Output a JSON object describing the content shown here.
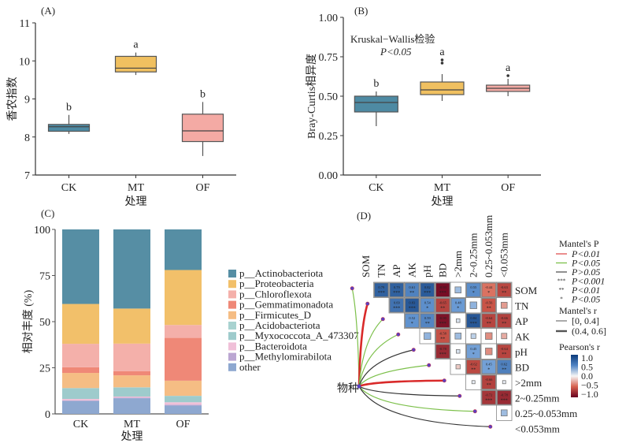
{
  "chart_data": [
    {
      "panel": "(A)",
      "type": "box",
      "title": "",
      "xlabel": "处理",
      "ylabel": "香农指数",
      "ylim": [
        7,
        11
      ],
      "yticks": [
        7,
        8,
        9,
        10,
        11
      ],
      "categories": [
        "CK",
        "MT",
        "OF"
      ],
      "colors": [
        "#4e8aa3",
        "#f0c060",
        "#f4aaa4"
      ],
      "boxes": [
        {
          "name": "CK",
          "whisker_low": 8.08,
          "q1": 8.15,
          "median": 8.27,
          "q3": 8.33,
          "whisker_high": 8.58,
          "outliers": [],
          "letter": "b"
        },
        {
          "name": "MT",
          "whisker_low": 9.63,
          "q1": 9.71,
          "median": 9.81,
          "q3": 10.12,
          "whisker_high": 10.22,
          "outliers": [],
          "letter": "a"
        },
        {
          "name": "OF",
          "whisker_low": 7.5,
          "q1": 7.88,
          "median": 8.16,
          "q3": 8.6,
          "whisker_high": 8.92,
          "outliers": [],
          "letter": "b"
        }
      ]
    },
    {
      "panel": "(B)",
      "type": "box",
      "xlabel": "处理",
      "ylabel": "Bray-Curtis相异度",
      "ylim": [
        0,
        1
      ],
      "yticks": [
        "0.00",
        "0.25",
        "0.50",
        "0.75",
        "1.00"
      ],
      "annotation": [
        "Kruskal−Wallis检验",
        "P<0.05"
      ],
      "categories": [
        "CK",
        "MT",
        "OF"
      ],
      "colors": [
        "#4e8aa3",
        "#f0c060",
        "#f4aaa4"
      ],
      "boxes": [
        {
          "name": "CK",
          "whisker_low": 0.31,
          "q1": 0.4,
          "median": 0.46,
          "q3": 0.5,
          "whisker_high": 0.53,
          "outliers": [],
          "letter": "b"
        },
        {
          "name": "MT",
          "whisker_low": 0.47,
          "q1": 0.51,
          "median": 0.54,
          "q3": 0.59,
          "whisker_high": 0.64,
          "outliers": [
            0.71,
            0.73
          ],
          "letter": "a"
        },
        {
          "name": "OF",
          "whisker_low": 0.5,
          "q1": 0.53,
          "median": 0.55,
          "q3": 0.57,
          "whisker_high": 0.61,
          "outliers": [
            0.63
          ],
          "letter": "a"
        }
      ]
    },
    {
      "panel": "(C)",
      "type": "stacked-bar",
      "xlabel": "处理",
      "ylabel": "相对丰度 (%)",
      "ylim": [
        0,
        100
      ],
      "yticks": [
        0,
        25,
        50,
        75,
        100
      ],
      "categories": [
        "CK",
        "MT",
        "OF"
      ],
      "series": [
        {
          "name": "other",
          "color": "#8ea8d0",
          "values": [
            7,
            8.5,
            4.5
          ]
        },
        {
          "name": "p__Methylomirabilota",
          "color": "#bba6d2",
          "values": [
            0.3,
            0.3,
            0.5
          ]
        },
        {
          "name": "p__Bacteroidota",
          "color": "#f0c0d8",
          "values": [
            0.8,
            0.6,
            1.3
          ]
        },
        {
          "name": "p__Myxococcota_A_473307",
          "color": "#9ecbcc",
          "values": [
            5.8,
            4.9,
            3.4
          ]
        },
        {
          "name": "p__Acidobacteriota",
          "color": "#a8d2d0",
          "values": [
            0.1,
            0.1,
            0.1
          ]
        },
        {
          "name": "p__Firmicutes_D",
          "color": "#f5bd84",
          "values": [
            8.2,
            6.5,
            8.2
          ]
        },
        {
          "name": "p__Gemmatimonadota",
          "color": "#ef8877",
          "values": [
            3.1,
            2.3,
            23.2
          ]
        },
        {
          "name": "p__Chloroflexota",
          "color": "#f4b0aa",
          "values": [
            12.7,
            14.9,
            7.0
          ]
        },
        {
          "name": "p__Proteobacteria",
          "color": "#f2c06a",
          "values": [
            21.6,
            19.0,
            29.8
          ]
        },
        {
          "name": "p__Actinobacteriota",
          "color": "#568ea4",
          "values": [
            40.4,
            42.9,
            22.0
          ]
        }
      ],
      "legend": [
        "p__Actinobacteriota",
        "p__Proteobacteria",
        "p__Chloroflexota",
        "p__Gemmatimonadota",
        "p__Firmicutes_D",
        "p__Acidobacteriota",
        "p__Myxococcota_A_473307",
        "p__Bacteroidota",
        "p__Methylomirabilota",
        "other"
      ],
      "legend_colors": [
        "#568ea4",
        "#f2c06a",
        "#f4b0aa",
        "#ef8877",
        "#f5bd84",
        "#a8d2d0",
        "#9ecbcc",
        "#f0c0d8",
        "#bba6d2",
        "#8ea8d0"
      ]
    },
    {
      "panel": "(D)",
      "type": "heatmap",
      "variables": [
        "SOM",
        "TN",
        "AP",
        "AK",
        "pH",
        "BD",
        ">2mm",
        "2~0.25mm",
        "0.25~0.053mm",
        "<0.053mm"
      ],
      "matrix_upper": [
        [
          "SOM",
          "TN",
          0.79,
          "***"
        ],
        [
          "SOM",
          "AP",
          0.79,
          "***"
        ],
        [
          "SOM",
          "AK",
          0.61,
          "**"
        ],
        [
          "SOM",
          "pH",
          0.82,
          "***"
        ],
        [
          "SOM",
          "BD",
          -0.93,
          "***"
        ],
        [
          "SOM",
          ">2mm",
          0.3,
          ""
        ],
        [
          "SOM",
          "2~0.25mm",
          0.55,
          "*"
        ],
        [
          "SOM",
          "0.25~0.053mm",
          -0.44,
          "*"
        ],
        [
          "SOM",
          "<0.053mm",
          -0.63,
          "**"
        ],
        [
          "TN",
          "AP",
          0.69,
          "***"
        ],
        [
          "TN",
          "AK",
          0.83,
          "***"
        ],
        [
          "TN",
          "pH",
          0.54,
          "*"
        ],
        [
          "TN",
          "BD",
          -0.65,
          "**"
        ],
        [
          "TN",
          ">2mm",
          0.48,
          "*"
        ],
        [
          "TN",
          "2~0.25mm",
          0.35,
          ""
        ],
        [
          "TN",
          "0.25~0.053mm",
          -0.56,
          "**"
        ],
        [
          "TN",
          "<0.053mm",
          -0.3,
          ""
        ],
        [
          "AP",
          "AK",
          0.52,
          "*"
        ],
        [
          "AP",
          "pH",
          0.59,
          "**"
        ],
        [
          "AP",
          "BD",
          -0.9,
          "***"
        ],
        [
          "AP",
          ">2mm",
          0.1,
          ""
        ],
        [
          "AP",
          "2~0.25mm",
          0.84,
          "***"
        ],
        [
          "AP",
          "0.25~0.053mm",
          -0.64,
          "**"
        ],
        [
          "AP",
          "<0.053mm",
          -0.66,
          "**"
        ],
        [
          "AK",
          "pH",
          0.35,
          ""
        ],
        [
          "AK",
          "BD",
          -0.58,
          "**"
        ],
        [
          "AK",
          ">2mm",
          0.3,
          ""
        ],
        [
          "AK",
          "2~0.25mm",
          0.2,
          ""
        ],
        [
          "AK",
          "0.25~0.053mm",
          -0.35,
          ""
        ],
        [
          "AK",
          "<0.053mm",
          -0.25,
          ""
        ],
        [
          "pH",
          "BD",
          -0.78,
          "***"
        ],
        [
          "pH",
          ">2mm",
          0.1,
          ""
        ],
        [
          "pH",
          "2~0.25mm",
          0.45,
          "*"
        ],
        [
          "pH",
          "0.25~0.053mm",
          -0.35,
          ""
        ],
        [
          "pH",
          "<0.053mm",
          -0.64,
          "**"
        ],
        [
          "BD",
          ">2mm",
          -0.15,
          ""
        ],
        [
          "BD",
          "2~0.25mm",
          -0.62,
          "**"
        ],
        [
          "BD",
          "0.25~0.053mm",
          0.45,
          "*"
        ],
        [
          "BD",
          "<0.053mm",
          0.62,
          "**"
        ],
        [
          ">2mm",
          "2~0.25mm",
          0.05,
          ""
        ],
        [
          ">2mm",
          "0.25~0.053mm",
          -0.66,
          "**"
        ],
        [
          ">2mm",
          "<0.053mm",
          0.05,
          ""
        ],
        [
          "2~0.25mm",
          "0.25~0.053mm",
          -0.72,
          "***"
        ],
        [
          "2~0.25mm",
          "<0.053mm",
          -0.78,
          "***"
        ],
        [
          "0.25~0.053mm",
          "<0.053mm",
          0.3,
          ""
        ]
      ],
      "mantel_source": "物种",
      "mantel_links": [
        {
          "to": "SOM",
          "p_class": "P<0.05",
          "r_class": "[0, 0.4]"
        },
        {
          "to": "TN",
          "p_class": "P<0.01",
          "r_class": "(0.4, 0.6]"
        },
        {
          "to": "AP",
          "p_class": "P<0.05",
          "r_class": "[0, 0.4]"
        },
        {
          "to": "AK",
          "p_class": "P<0.05",
          "r_class": "[0, 0.4]"
        },
        {
          "to": "pH",
          "p_class": "P>0.05",
          "r_class": "[0, 0.4]"
        },
        {
          "to": "BD",
          "p_class": "P<0.05",
          "r_class": "[0, 0.4]"
        },
        {
          "to": ">2mm",
          "p_class": "P<0.01",
          "r_class": "(0.4, 0.6]"
        },
        {
          "to": "2~0.25mm",
          "p_class": "P>0.05",
          "r_class": "[0, 0.4]"
        },
        {
          "to": "0.25~0.053mm",
          "p_class": "P<0.05",
          "r_class": "[0, 0.4]"
        },
        {
          "to": "<0.053mm",
          "p_class": "P>0.05",
          "r_class": "[0, 0.4]"
        }
      ],
      "legend": {
        "mantel_p_title": "Mantel's P",
        "mantel_p_items": [
          {
            "label": "P<0.01",
            "color": "#e05050",
            "kind": "line"
          },
          {
            "label": "P<0.05",
            "color": "#7cc04a",
            "kind": "line"
          },
          {
            "label": "P>0.05",
            "color": "#555555",
            "kind": "line"
          },
          {
            "label": "P<0.001",
            "symbol": "***",
            "kind": "mark"
          },
          {
            "label": "P<0.01",
            "symbol": "**",
            "kind": "mark"
          },
          {
            "label": "P<0.05",
            "symbol": "*",
            "kind": "mark"
          }
        ],
        "mantel_r_title": "Mantel's r",
        "mantel_r_items": [
          "[0, 0.4]",
          "(0.4, 0.6]"
        ],
        "pearson_title": "Pearson's r",
        "pearson_ticks": [
          "1.0",
          "0.5",
          "0.0",
          "−0.5",
          "−1.0"
        ],
        "pearson_colors": [
          "#0b3a7a",
          "#4f84c4",
          "#f6f6f6",
          "#d6604d",
          "#67001f"
        ]
      }
    }
  ]
}
